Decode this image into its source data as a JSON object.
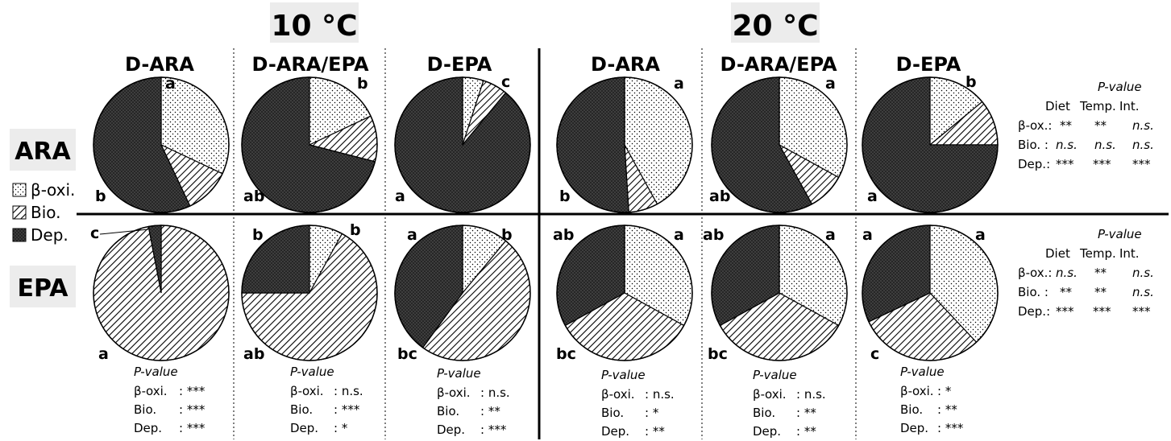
{
  "temperatures": [
    "10 °C",
    "20 °C"
  ],
  "diets": [
    "D-ARA",
    "D-ARA/EPA",
    "D-EPA",
    "D-ARA",
    "D-ARA/EPA",
    "D-EPA"
  ],
  "rows": [
    "ARA",
    "EPA"
  ],
  "legend": [
    {
      "label": "β-oxi.",
      "pattern": "dots"
    },
    {
      "label": "Bio.",
      "pattern": "hatch"
    },
    {
      "label": "Dep.",
      "pattern": "dense"
    }
  ],
  "colors": {
    "background": "#ffffff",
    "label_box": "#ececec",
    "ink": "#000000",
    "dense_fill": "#262626"
  },
  "row_stats": [
    {
      "title": "P-value",
      "header": [
        "Diet",
        "Temp.",
        "Int."
      ],
      "lines": [
        {
          "label": "β-ox.:",
          "values": [
            "**",
            "**",
            "n.s."
          ]
        },
        {
          "label": "Bio. :",
          "values": [
            "n.s.",
            "n.s.",
            "n.s."
          ]
        },
        {
          "label": "Dep.:",
          "values": [
            "***",
            "***",
            "***"
          ]
        }
      ]
    },
    {
      "title": "P-value",
      "header": [
        "Diet",
        "Temp.",
        "Int."
      ],
      "lines": [
        {
          "label": "β-ox.:",
          "values": [
            "n.s.",
            "**",
            "n.s."
          ]
        },
        {
          "label": "Bio. :",
          "values": [
            "**",
            "**",
            "n.s."
          ]
        },
        {
          "label": "Dep.:",
          "values": [
            "***",
            "***",
            "***"
          ]
        }
      ]
    }
  ],
  "column_stats": [
    {
      "title": "P-value",
      "lines": [
        {
          "label": "β-oxi.",
          "value": ": ***"
        },
        {
          "label": "Bio.",
          "value": ": ***"
        },
        {
          "label": "Dep.",
          "value": ": ***"
        }
      ]
    },
    {
      "title": "P-value",
      "lines": [
        {
          "label": "β-oxi.",
          "value": ": n.s."
        },
        {
          "label": "Bio.",
          "value": ": ***"
        },
        {
          "label": "Dep.",
          "value": ": *"
        }
      ]
    },
    {
      "title": "P-value",
      "lines": [
        {
          "label": "β-oxi.",
          "value": ": n.s."
        },
        {
          "label": "Bio.",
          "value": ": **"
        },
        {
          "label": "Dep.",
          "value": ": ***"
        }
      ]
    },
    {
      "title": "P-value",
      "lines": [
        {
          "label": "β-oxi.",
          "value": ": n.s."
        },
        {
          "label": "Bio.",
          "value": ": *"
        },
        {
          "label": "Dep.",
          "value": ": **"
        }
      ]
    },
    {
      "title": "P-value",
      "lines": [
        {
          "label": "β-oxi.",
          "value": ": n.s."
        },
        {
          "label": "Bio.",
          "value": ": **"
        },
        {
          "label": "Dep.",
          "value": ": **"
        }
      ]
    },
    {
      "title": "P-value",
      "lines": [
        {
          "label": "β-oxi.",
          "value": ": *"
        },
        {
          "label": "Bio.",
          "value": ": **"
        },
        {
          "label": "Dep.",
          "value": ": ***"
        }
      ]
    }
  ],
  "chart_data": {
    "type": "pie",
    "slice_order": [
      "β-oxi.",
      "Bio.",
      "Dep."
    ],
    "pies": [
      {
        "row": "ARA",
        "temperature": "10 °C",
        "diet": "D-ARA",
        "values": [
          32,
          11,
          57
        ],
        "letters": {
          "β-oxi.": "a",
          "Dep.": "b"
        }
      },
      {
        "row": "ARA",
        "temperature": "10 °C",
        "diet": "D-ARA/EPA",
        "values": [
          18,
          11,
          71
        ],
        "letters": {
          "β-oxi.": "b",
          "Dep.": "ab"
        }
      },
      {
        "row": "ARA",
        "temperature": "10 °C",
        "diet": "D-EPA",
        "values": [
          5,
          6,
          89
        ],
        "letters": {
          "β-oxi.": "c",
          "Dep.": "a"
        }
      },
      {
        "row": "ARA",
        "temperature": "20 °C",
        "diet": "D-ARA",
        "values": [
          42,
          7,
          51
        ],
        "letters": {
          "β-oxi.": "a",
          "Dep.": "b"
        }
      },
      {
        "row": "ARA",
        "temperature": "20 °C",
        "diet": "D-ARA/EPA",
        "values": [
          33,
          9,
          58
        ],
        "letters": {
          "β-oxi.": "a",
          "Dep.": "ab"
        }
      },
      {
        "row": "ARA",
        "temperature": "20 °C",
        "diet": "D-EPA",
        "values": [
          14,
          11,
          75
        ],
        "letters": {
          "β-oxi.": "b",
          "Dep.": "a"
        }
      },
      {
        "row": "EPA",
        "temperature": "10 °C",
        "diet": "D-ARA",
        "values": [
          0,
          97,
          3
        ],
        "letters": {
          "β-oxi.": "c",
          "Bio.": "a"
        }
      },
      {
        "row": "EPA",
        "temperature": "10 °C",
        "diet": "D-ARA/EPA",
        "values": [
          8,
          67,
          25
        ],
        "letters": {
          "β-oxi.": "b",
          "Bio.": "ab",
          "Dep.": "b"
        }
      },
      {
        "row": "EPA",
        "temperature": "10 °C",
        "diet": "D-EPA",
        "values": [
          11,
          49,
          40
        ],
        "letters": {
          "β-oxi.": "b",
          "Bio.": "bc",
          "Dep.": "a"
        }
      },
      {
        "row": "EPA",
        "temperature": "20 °C",
        "diet": "D-ARA",
        "values": [
          33,
          34,
          33
        ],
        "letters": {
          "β-oxi.": "a",
          "Bio.": "bc",
          "Dep.": "ab"
        }
      },
      {
        "row": "EPA",
        "temperature": "20 °C",
        "diet": "D-ARA/EPA",
        "values": [
          33,
          34,
          33
        ],
        "letters": {
          "β-oxi.": "a",
          "Bio.": "bc",
          "Dep.": "ab"
        }
      },
      {
        "row": "EPA",
        "temperature": "20 °C",
        "diet": "D-EPA",
        "values": [
          38,
          30,
          32
        ],
        "letters": {
          "β-oxi.": "a",
          "Bio.": "c",
          "Dep.": "a"
        }
      }
    ]
  }
}
